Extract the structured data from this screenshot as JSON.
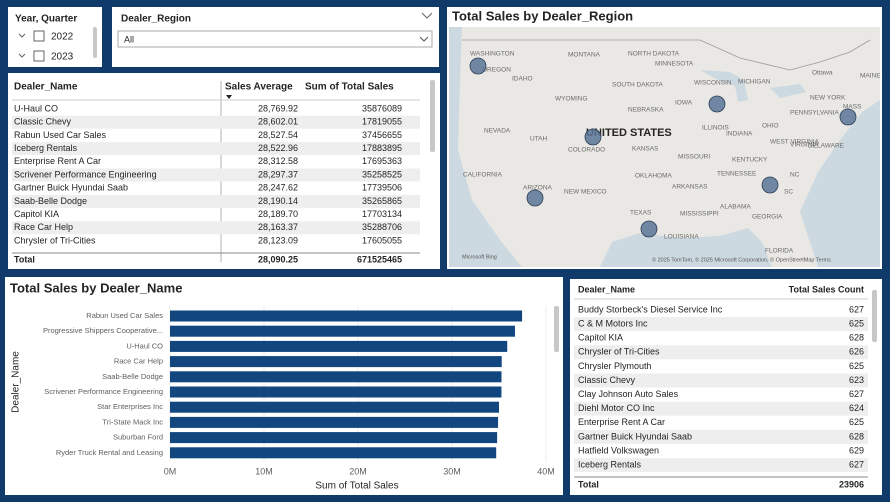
{
  "slicers": {
    "year_quarter": {
      "title": "Year, Quarter",
      "items": [
        "2022",
        "2023"
      ]
    },
    "dealer_region": {
      "title": "Dealer_Region",
      "selected": "All"
    }
  },
  "table1": {
    "headers": [
      "Dealer_Name",
      "Sales Average",
      "Sum of Total Sales"
    ],
    "rows": [
      [
        "U-Haul CO",
        "28,769.92",
        "35876089"
      ],
      [
        "Classic Chevy",
        "28,602.01",
        "17819055"
      ],
      [
        "Rabun Used Car Sales",
        "28,527.54",
        "37456655"
      ],
      [
        "Iceberg Rentals",
        "28,522.96",
        "17883895"
      ],
      [
        "Enterprise Rent A Car",
        "28,312.58",
        "17695363"
      ],
      [
        "Scrivener Performance Engineering",
        "28,297.37",
        "35258525"
      ],
      [
        "Gartner Buick Hyundai Saab",
        "28,247.62",
        "17739506"
      ],
      [
        "Saab-Belle Dodge",
        "28,190.14",
        "35265865"
      ],
      [
        "Capitol KIA",
        "28,189.70",
        "17703134"
      ],
      [
        "Race Car Help",
        "28,163.37",
        "35288706"
      ],
      [
        "Chrysler of Tri-Cities",
        "28,123.09",
        "17605055"
      ]
    ],
    "total": [
      "Total",
      "28,090.25",
      "671525465"
    ]
  },
  "map": {
    "title": "Total Sales by Dealer_Region",
    "country": "UNITED STATES",
    "labels": [
      "WASHINGTON",
      "MONTANA",
      "NORTH DAKOTA",
      "MINNESOTA",
      "OREGON",
      "IDAHO",
      "SOUTH DAKOTA",
      "WYOMING",
      "WISCONSIN",
      "MICHIGAN",
      "NEVADA",
      "NEBRASKA",
      "IOWA",
      "UTAH",
      "COLORADO",
      "KANSAS",
      "MISSOURI",
      "ILLINOIS",
      "INDIANA",
      "OHIO",
      "CALIFORNIA",
      "ARIZONA",
      "NEW MEXICO",
      "OKLAHOMA",
      "ARKANSAS",
      "TEXAS",
      "TENNESSEE",
      "KENTUCKY",
      "MISSISSIPPI",
      "ALABAMA",
      "GEORGIA",
      "LOUISIANA",
      "FLORIDA",
      "SC",
      "NC",
      "VIRGINIA",
      "WEST VIRGINIA",
      "PENNSYLVANIA",
      "NEW YORK",
      "MAINE",
      "MASS",
      "DELAWARE",
      "Ottawa"
    ],
    "attribution": "© 2025 TomTom, © 2025 Microsoft Corporation, © OpenStreetMap  Terms",
    "provider": "Microsoft Bing"
  },
  "chart_data": {
    "type": "bar",
    "orientation": "horizontal",
    "title": "Total Sales by Dealer_Name",
    "x_label": "Sum of Total Sales",
    "y_label": "Dealer_Name",
    "categories": [
      "Rabun Used Car Sales",
      "Progressive Shippers Cooperative...",
      "U-Haul CO",
      "Race Car Help",
      "Saab-Belle Dodge",
      "Scrivener Performance Engineering",
      "Star Enterprises Inc",
      "Tri-State Mack Inc",
      "Suburban Ford",
      "Ryder Truck Rental and Leasing"
    ],
    "values": [
      37456655,
      36700000,
      35876089,
      35288706,
      35265865,
      35258525,
      35000000,
      34900000,
      34800000,
      34700000
    ],
    "color": "#12467f",
    "xlim": [
      0,
      40000000
    ],
    "xticks": [
      {
        "value": 0,
        "label": "0M"
      },
      {
        "value": 10000000,
        "label": "10M"
      },
      {
        "value": 20000000,
        "label": "20M"
      },
      {
        "value": 30000000,
        "label": "30M"
      },
      {
        "value": 40000000,
        "label": "40M"
      }
    ]
  },
  "table2": {
    "headers": [
      "Dealer_Name",
      "Total Sales Count"
    ],
    "rows": [
      [
        "Buddy Storbeck's Diesel Service Inc",
        "627"
      ],
      [
        "C & M Motors Inc",
        "625"
      ],
      [
        "Capitol KIA",
        "628"
      ],
      [
        "Chrysler of Tri-Cities",
        "626"
      ],
      [
        "Chrysler Plymouth",
        "625"
      ],
      [
        "Classic Chevy",
        "623"
      ],
      [
        "Clay Johnson Auto Sales",
        "627"
      ],
      [
        "Diehl Motor CO Inc",
        "624"
      ],
      [
        "Enterprise Rent A Car",
        "625"
      ],
      [
        "Gartner Buick Hyundai Saab",
        "628"
      ],
      [
        "Hatfield Volkswagen",
        "629"
      ],
      [
        "Iceberg Rentals",
        "627"
      ]
    ],
    "total": [
      "Total",
      "23906"
    ]
  }
}
